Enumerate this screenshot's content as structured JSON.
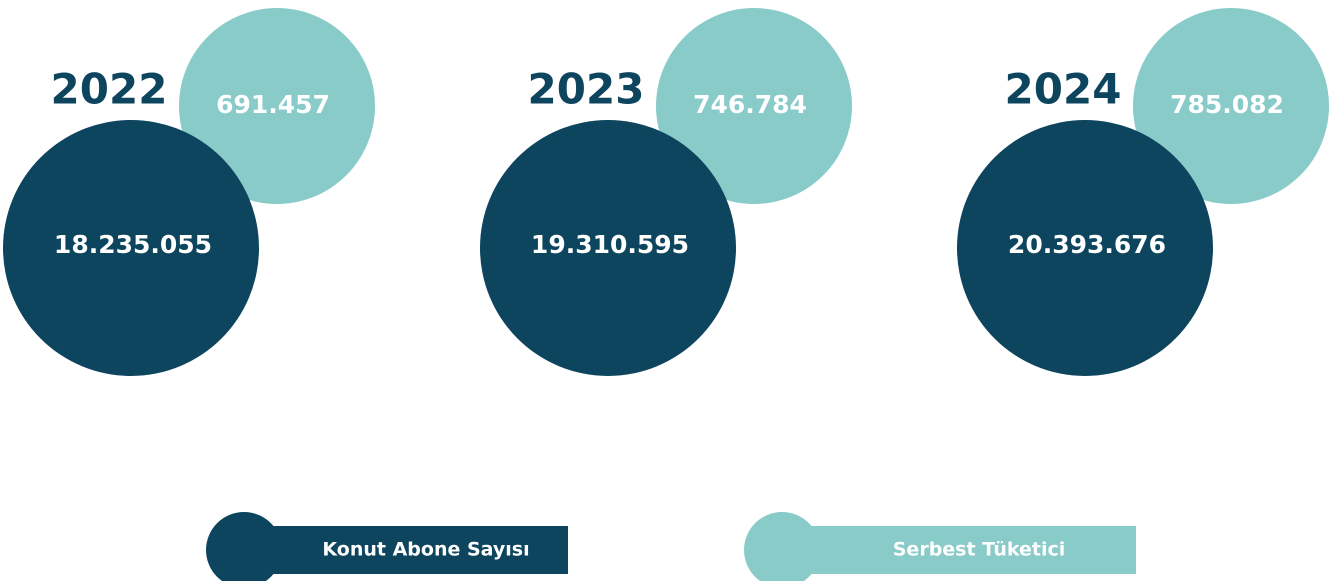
{
  "groups": [
    {
      "year": "2022",
      "konut": "18.235.055",
      "serbest": "691.457"
    },
    {
      "year": "2023",
      "konut": "19.310.595",
      "serbest": "746.784"
    },
    {
      "year": "2024",
      "konut": "20.393.676",
      "serbest": "785.082"
    }
  ],
  "legend": [
    "Konut Abone Sayısı",
    "Serbest Tüketici"
  ]
}
